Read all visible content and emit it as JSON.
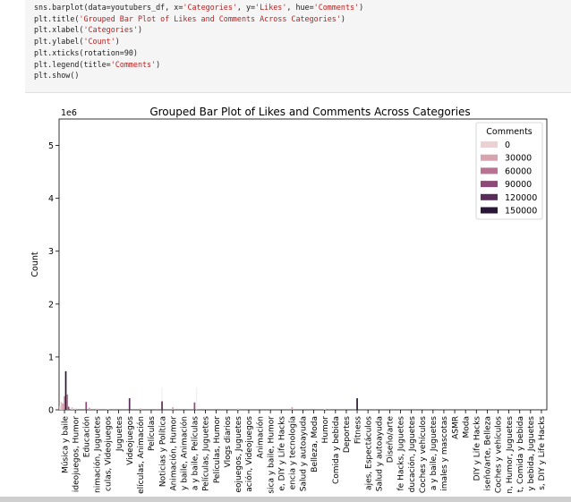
{
  "code_cell": {
    "lines": [
      [
        {
          "t": "sns.barplot(data=youtubers_df, x="
        },
        {
          "t": "'Categories'",
          "s": 1
        },
        {
          "t": ", y="
        },
        {
          "t": "'Likes'",
          "s": 1
        },
        {
          "t": ", hue="
        },
        {
          "t": "'Comments'",
          "s": 1
        },
        {
          "t": ")"
        }
      ],
      [
        {
          "t": "plt.title("
        },
        {
          "t": "'Grouped Bar Plot of Likes and Comments Across Categories'",
          "s": 1
        },
        {
          "t": ")"
        }
      ],
      [
        {
          "t": "plt.xlabel("
        },
        {
          "t": "'Categories'",
          "s": 1
        },
        {
          "t": ")"
        }
      ],
      [
        {
          "t": "plt.ylabel("
        },
        {
          "t": "'Count'",
          "s": 1
        },
        {
          "t": ")"
        }
      ],
      [
        {
          "t": "plt.xticks(rotation=90)"
        }
      ],
      [
        {
          "t": "plt.legend(title="
        },
        {
          "t": "'Comments'",
          "s": 1
        },
        {
          "t": ")"
        }
      ],
      [
        {
          "t": "plt.show()"
        }
      ]
    ]
  },
  "chart_data": {
    "type": "bar",
    "title": "Grouped Bar Plot of Likes and Comments Across Categories",
    "xlabel": "",
    "ylabel": "Count",
    "y_offset_text": "1e6",
    "ylim": [
      0,
      5500000
    ],
    "yticks": [
      0,
      1,
      2,
      3,
      4,
      5
    ],
    "grid": false,
    "legend_position": "top-right",
    "legend": {
      "title": "Comments",
      "entries": [
        {
          "label": "0",
          "color": "#ead2d4"
        },
        {
          "label": "30000",
          "color": "#d6a3ae"
        },
        {
          "label": "60000",
          "color": "#b87392"
        },
        {
          "label": "90000",
          "color": "#8d4a78"
        },
        {
          "label": "120000",
          "color": "#5a2c5a"
        },
        {
          "label": "150000",
          "color": "#2a1637"
        }
      ]
    },
    "categories": [
      "Música y baile",
      "Videojuegos, Humor",
      "Educación",
      "Animación, Juguetes",
      "Películas, Videojuegos",
      "Juguetes",
      "Videojuegos",
      "Películas, Animación",
      "Películas",
      "Noticias y Política",
      "Animación, Humor",
      "Música y baile, Animación",
      "Música y baile, Películas",
      "Películas, Juguetes",
      "Películas, Humor",
      "Vlogs diarios",
      "Videojuegos, Juguetes",
      "Animación, Videojuegos",
      "Animación",
      "Música y baile, Humor",
      "Humor, DIY y Life Hacks",
      "Ciencia y tecnología",
      "Salud y autoayuda",
      "Belleza, Moda",
      "Humor",
      "Comida y bebida",
      "Deportes",
      "Fitness",
      "Viajes, Espectáculos",
      "Salud y autoayuda",
      "Diseño/arte",
      "DIY y Life Hacks, Juguetes",
      "Educación, Juguetes",
      "Coches y vehículos",
      "Música y baile, Juguetes",
      "Animales y mascotas",
      "ASMR",
      "Moda",
      "DIY y Life Hacks",
      "Diseño/arte, Belleza",
      "Coches y vehículos",
      "Animación, Humor, Juguetes",
      "Música y baile, Comida y bebida",
      "Comida y bebida, Juguetes",
      "Videojuegos, DIY y Life Hacks"
    ],
    "tick_labels": [
      "Música y baile",
      "ideojuegos, Humor",
      "Educación",
      "nimación, Juguetes",
      "culas, Videojuegos",
      "Juguetes",
      "Videojuegos",
      "elículas, Animación",
      "Películas",
      "Noticias y Política",
      "Animación, Humor",
      "y baile, Animación",
      "a y baile, Películas",
      "Películas, Juguetes",
      "Películas, Humor",
      "Vlogs diarios",
      "eojuegos, Juguetes",
      "ación, Videojuegos",
      "Animación",
      "sica y baile, Humor",
      "e, DIY y Life Hacks",
      "encia y tecnología",
      "Salud y autoayuda",
      "Belleza, Moda",
      "Humor",
      "Comida y bebida",
      "Deportes",
      "Fitness",
      "ajes, Espectáculos",
      "Salud y autoayuda",
      "Diseño/arte",
      "fe Hacks, Juguetes",
      "ducación, Juguetes",
      "Coches y vehículos",
      "a y baile, Juguetes",
      "imales y mascotas",
      "ASMR",
      "Moda",
      "DIY y Life Hacks",
      "iseño/arte, Belleza",
      "Coches y vehículos",
      "n, Humor, Juguetes",
      "t, Comida y bebida",
      "y bebida, Juguetes",
      "s, DIY y Life Hacks"
    ],
    "bars": [
      {
        "cat": 0,
        "offset": -0.42,
        "value": 80000,
        "color": "#ead2d4"
      },
      {
        "cat": 0,
        "offset": -0.28,
        "value": 150000,
        "color": "#e2c0c6"
      },
      {
        "cat": 0,
        "offset": -0.14,
        "value": 120000,
        "color": "#d6a3ae"
      },
      {
        "cat": 0,
        "offset": 0.0,
        "value": 260000,
        "color": "#c98c9f"
      },
      {
        "cat": 0,
        "offset": 0.12,
        "value": 730000,
        "color": "#2a1637"
      },
      {
        "cat": 0,
        "offset": 0.26,
        "value": 290000,
        "color": "#b87392"
      },
      {
        "cat": 0,
        "offset": 0.38,
        "value": 60000,
        "color": "#8d4a78"
      },
      {
        "cat": 1,
        "offset": -0.3,
        "value": 50000,
        "color": "#e2c0c6"
      },
      {
        "cat": 1,
        "offset": 0.0,
        "value": 30000,
        "color": "#ead2d4"
      },
      {
        "cat": 2,
        "offset": 0.0,
        "value": 150000,
        "color": "#8d4a78"
      },
      {
        "cat": 2,
        "offset": 0.3,
        "value": 40000,
        "color": "#d6a3ae"
      },
      {
        "cat": 3,
        "offset": 0.0,
        "value": 30000,
        "color": "#ead2d4"
      },
      {
        "cat": 4,
        "offset": 0.0,
        "value": 20000,
        "color": "#ead2d4"
      },
      {
        "cat": 6,
        "offset": 0.0,
        "value": 220000,
        "color": "#5a2c5a"
      },
      {
        "cat": 7,
        "offset": 0.0,
        "value": 30000,
        "color": "#e2c0c6"
      },
      {
        "cat": 9,
        "offset": 0.0,
        "value": 160000,
        "color": "#5a2c5a"
      },
      {
        "cat": 10,
        "offset": 0.0,
        "value": 50000,
        "color": "#d6a3ae"
      },
      {
        "cat": 12,
        "offset": 0.0,
        "value": 140000,
        "color": "#8d4a78"
      },
      {
        "cat": 16,
        "offset": 0.0,
        "value": 30000,
        "color": "#ead2d4"
      },
      {
        "cat": 21,
        "offset": 0.0,
        "value": 50000,
        "color": "#d6a3ae"
      },
      {
        "cat": 24,
        "offset": 0.0,
        "value": 20000,
        "color": "#ead2d4"
      },
      {
        "cat": 27,
        "offset": 0.0,
        "value": 220000,
        "color": "#2a1637"
      }
    ]
  }
}
